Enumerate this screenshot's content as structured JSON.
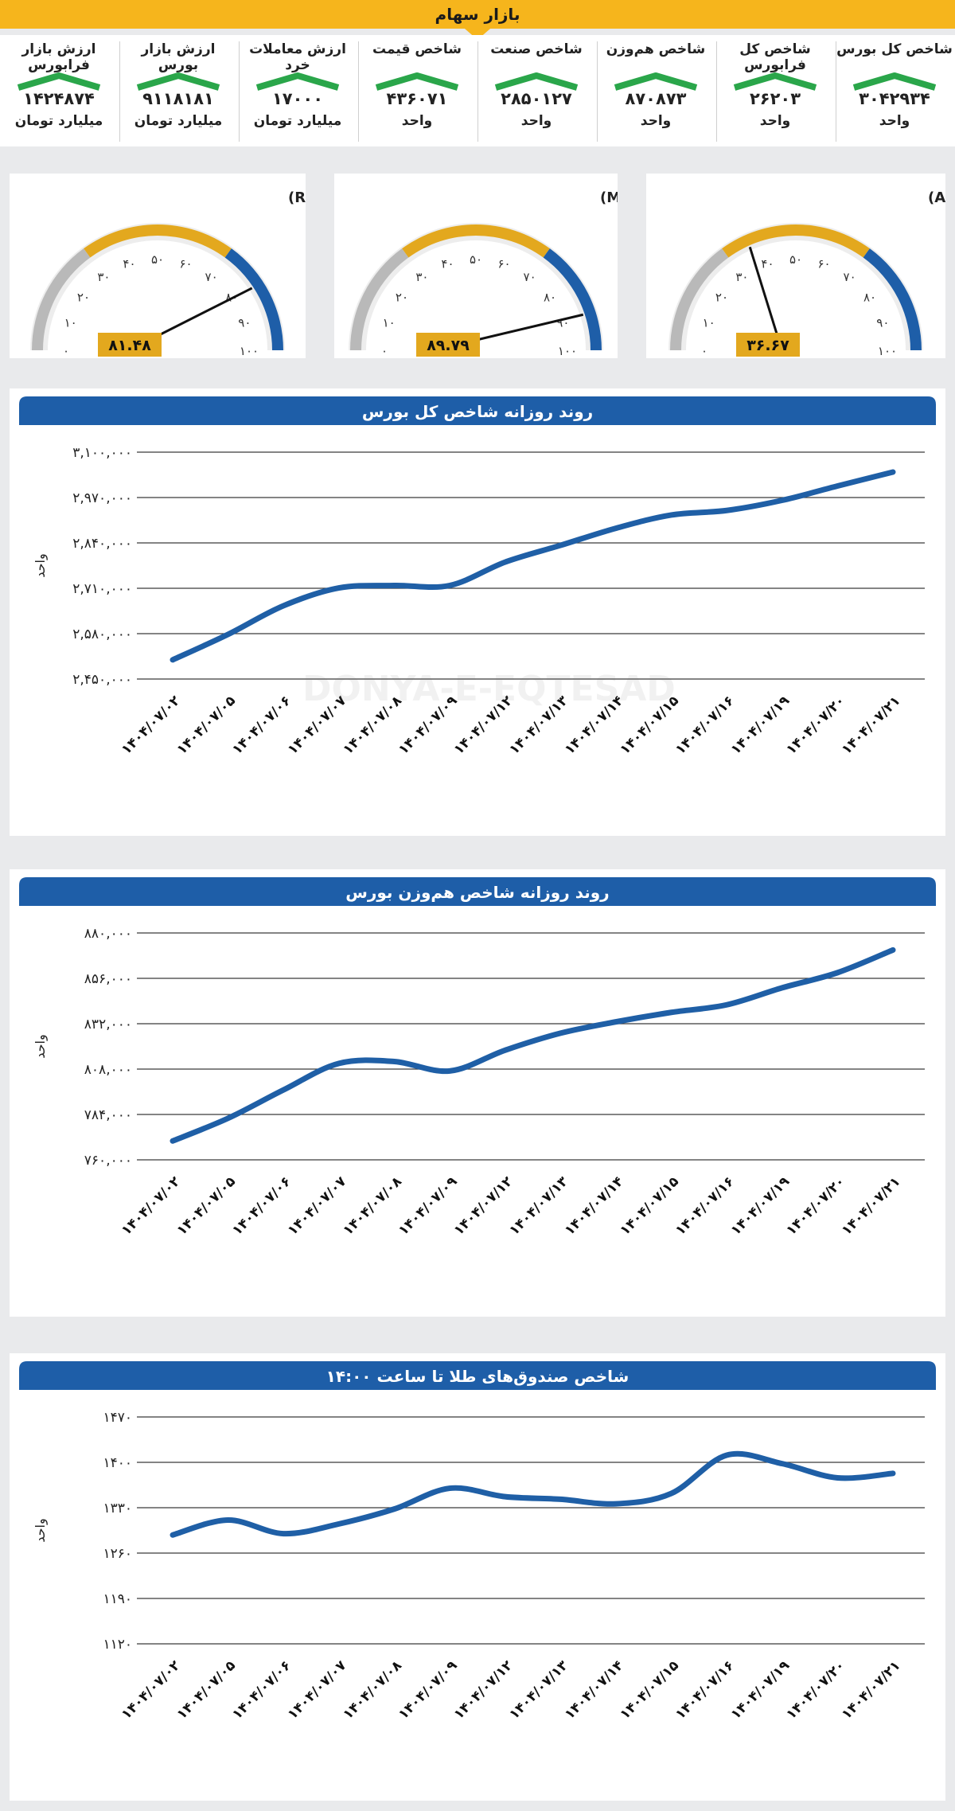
{
  "header": {
    "title": "بازار سهام"
  },
  "stats": [
    {
      "label": "شاخص کل بورس",
      "value": "۳۰۴۲۹۳۴",
      "unit": "واحد",
      "trend": "up"
    },
    {
      "label": "شاخص کل فرابورس",
      "value": "۲۶۲۰۳",
      "unit": "واحد",
      "trend": "up"
    },
    {
      "label": "شاخص هم‌وزن",
      "value": "۸۷۰۸۷۳",
      "unit": "واحد",
      "trend": "up"
    },
    {
      "label": "شاخص صنعت",
      "value": "۲۸۵۰۱۲۷",
      "unit": "واحد",
      "trend": "up"
    },
    {
      "label": "شاخص قیمت",
      "value": "۴۳۶۰۷۱",
      "unit": "واحد",
      "trend": "up"
    },
    {
      "label": "ارزش معاملات خرد",
      "value": "۱۷۰۰۰",
      "unit": "میلیارد تومان",
      "trend": "up"
    },
    {
      "label": "ارزش بازار بورس",
      "value": "۹۱۱۸۱۸۱",
      "unit": "میلیارد تومان",
      "trend": "up"
    },
    {
      "label": "ارزش بازار فرابورس",
      "value": "۱۴۲۴۸۷۴",
      "unit": "میلیارد تومان",
      "trend": "up"
    }
  ],
  "gauges": [
    {
      "title": "شاخص قدرت نسبی ( RSI)",
      "value": 81.48,
      "value_text": "۸۱.۴۸",
      "ticks": [
        "۰",
        "۱۰",
        "۲۰",
        "۳۰",
        "۴۰",
        "۵۰",
        "۶۰",
        "۷۰",
        "۸۰",
        "۹۰",
        "۱۰۰"
      ]
    },
    {
      "title": "شاخص جریان پول (MFI)",
      "value": 89.79,
      "value_text": "۸۹.۷۹",
      "ticks": [
        "۰",
        "۱۰",
        "۲۰",
        "۳۰",
        "۴۰",
        "۵۰",
        "۶۰",
        "۷۰",
        "۸۰",
        "۹۰",
        "۱۰۰"
      ]
    },
    {
      "title": "شاخص میانگین حرکت جهت‌دار (ADX)",
      "value": 36.67,
      "value_text": "۳۶.۶۷",
      "ticks": [
        "۰",
        "۱۰",
        "۲۰",
        "۳۰",
        "۴۰",
        "۵۰",
        "۶۰",
        "۷۰",
        "۸۰",
        "۹۰",
        "۱۰۰"
      ]
    }
  ],
  "colors": {
    "gray": "#b9b9b9",
    "gold": "#e3a81e",
    "blue": "#1e5ea8",
    "line": "#1f5fa6",
    "banner": "#f6b51c",
    "label_box": "#e3a81e"
  },
  "chart_data": [
    {
      "type": "line",
      "title": "روند روزانه شاخص کل بورس",
      "ylabel": "واحد",
      "categories": [
        "۱۴۰۴/۰۷/۰۲",
        "۱۴۰۴/۰۷/۰۵",
        "۱۴۰۴/۰۷/۰۶",
        "۱۴۰۴/۰۷/۰۷",
        "۱۴۰۴/۰۷/۰۸",
        "۱۴۰۴/۰۷/۰۹",
        "۱۴۰۴/۰۷/۱۲",
        "۱۴۰۴/۰۷/۱۳",
        "۱۴۰۴/۰۷/۱۴",
        "۱۴۰۴/۰۷/۱۵",
        "۱۴۰۴/۰۷/۱۶",
        "۱۴۰۴/۰۷/۱۹",
        "۱۴۰۴/۰۷/۲۰",
        "۱۴۰۴/۰۷/۲۱"
      ],
      "values": [
        2505000,
        2578000,
        2660000,
        2711000,
        2718000,
        2718000,
        2785000,
        2833000,
        2882000,
        2920000,
        2933000,
        2962000,
        3003000,
        3043000
      ],
      "ylim": [
        2450000,
        3100000
      ],
      "yticks": [
        2450000,
        2580000,
        2710000,
        2840000,
        2970000,
        3100000
      ],
      "ytick_labels": [
        "۲,۴۵۰,۰۰۰",
        "۲,۵۸۰,۰۰۰",
        "۲,۷۱۰,۰۰۰",
        "۲,۸۴۰,۰۰۰",
        "۲,۹۷۰,۰۰۰",
        "۳,۱۰۰,۰۰۰"
      ],
      "grid": true
    },
    {
      "type": "line",
      "title": "روند روزانه شاخص هم‌وزن بورس",
      "ylabel": "واحد",
      "categories": [
        "۱۴۰۴/۰۷/۰۲",
        "۱۴۰۴/۰۷/۰۵",
        "۱۴۰۴/۰۷/۰۶",
        "۱۴۰۴/۰۷/۰۷",
        "۱۴۰۴/۰۷/۰۸",
        "۱۴۰۴/۰۷/۰۹",
        "۱۴۰۴/۰۷/۱۲",
        "۱۴۰۴/۰۷/۱۳",
        "۱۴۰۴/۰۷/۱۴",
        "۱۴۰۴/۰۷/۱۵",
        "۱۴۰۴/۰۷/۱۶",
        "۱۴۰۴/۰۷/۱۹",
        "۱۴۰۴/۰۷/۲۰",
        "۱۴۰۴/۰۷/۲۱"
      ],
      "values": [
        770000,
        782000,
        797000,
        811000,
        812000,
        807000,
        818000,
        827000,
        833000,
        838000,
        842000,
        851000,
        859000,
        871000
      ],
      "ylim": [
        760000,
        880000
      ],
      "yticks": [
        760000,
        784000,
        808000,
        832000,
        856000,
        880000
      ],
      "ytick_labels": [
        "۷۶۰,۰۰۰",
        "۷۸۴,۰۰۰",
        "۸۰۸,۰۰۰",
        "۸۳۲,۰۰۰",
        "۸۵۶,۰۰۰",
        "۸۸۰,۰۰۰"
      ],
      "grid": true
    },
    {
      "type": "line",
      "title": "شاخص صندوق‌های طلا تا ساعت ۱۴:۰۰",
      "ylabel": "واحد",
      "categories": [
        "۱۴۰۴/۰۷/۰۲",
        "۱۴۰۴/۰۷/۰۵",
        "۱۴۰۴/۰۷/۰۶",
        "۱۴۰۴/۰۷/۰۷",
        "۱۴۰۴/۰۷/۰۸",
        "۱۴۰۴/۰۷/۰۹",
        "۱۴۰۴/۰۷/۱۲",
        "۱۴۰۴/۰۷/۱۳",
        "۱۴۰۴/۰۷/۱۴",
        "۱۴۰۴/۰۷/۱۵",
        "۱۴۰۴/۰۷/۱۶",
        "۱۴۰۴/۰۷/۱۹",
        "۱۴۰۴/۰۷/۲۰",
        "۱۴۰۴/۰۷/۲۱"
      ],
      "values": [
        1288,
        1311,
        1290,
        1305,
        1328,
        1360,
        1347,
        1343,
        1336,
        1352,
        1411,
        1398,
        1376,
        1383
      ],
      "ylim": [
        1120,
        1470
      ],
      "yticks": [
        1120,
        1190,
        1260,
        1330,
        1400,
        1470
      ],
      "ytick_labels": [
        "۱۱۲۰",
        "۱۱۹۰",
        "۱۲۶۰",
        "۱۳۳۰",
        "۱۴۰۰",
        "۱۴۷۰"
      ],
      "grid": true
    }
  ]
}
